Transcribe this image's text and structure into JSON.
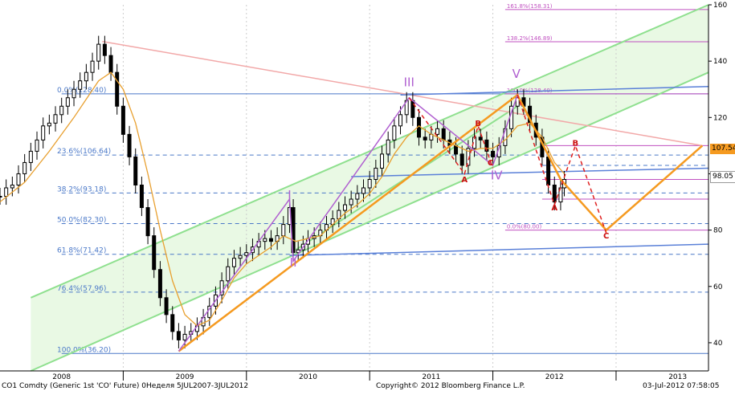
{
  "chart_data": {
    "type": "candlestick",
    "ylim": [
      30,
      160
    ],
    "y_ticks": [
      40,
      60,
      80,
      100,
      120,
      140,
      160
    ],
    "x_labels": [
      "2008",
      "2009",
      "2010",
      "2011",
      "2012",
      "2013"
    ],
    "price_labels": {
      "orange": "107.54",
      "white": "98.05"
    },
    "fib_levels": [
      {
        "label": "0.0%(128.40)",
        "value": 128.4
      },
      {
        "label": "23.6%(106.64)",
        "value": 106.64
      },
      {
        "label": "38.2%(93.18)",
        "value": 93.18
      },
      {
        "label": "50.0%(82.30)",
        "value": 82.3
      },
      {
        "label": "61.8%(71.42)",
        "value": 71.42
      },
      {
        "label": "76.4%(57.96)",
        "value": 57.96
      },
      {
        "label": "100.0%(36.20)",
        "value": 36.2
      }
    ],
    "fib_ext_levels": [
      {
        "label": "161.8%(158.31)",
        "value": 158.31
      },
      {
        "label": "138.2%(146.89)",
        "value": 146.89
      },
      {
        "label": "100.0%(128.40)",
        "value": 128.4
      },
      {
        "label": "0.0%(80.00)",
        "value": 80.0
      }
    ],
    "wave_labels": [
      {
        "text": "I",
        "t": 2009.85,
        "v": 91
      },
      {
        "text": "II",
        "t": 2009.88,
        "v": 67
      },
      {
        "text": "III",
        "t": 2010.82,
        "v": 131
      },
      {
        "text": "IV",
        "t": 2011.53,
        "v": 98
      },
      {
        "text": "V",
        "t": 2011.69,
        "v": 134
      }
    ],
    "abc_labels": [
      {
        "text": "A",
        "t": 2011.27,
        "v": 97
      },
      {
        "text": "B",
        "t": 2011.38,
        "v": 117
      },
      {
        "text": "C",
        "t": 2011.48,
        "v": 103
      },
      {
        "text": "A",
        "t": 2012.0,
        "v": 87
      },
      {
        "text": "B",
        "t": 2012.17,
        "v": 110
      },
      {
        "text": "C",
        "t": 2012.42,
        "v": 77
      }
    ],
    "candles": [
      [
        2007.5,
        92
      ],
      [
        2007.55,
        95
      ],
      [
        2007.6,
        96
      ],
      [
        2007.65,
        100
      ],
      [
        2007.7,
        104
      ],
      [
        2007.75,
        108
      ],
      [
        2007.8,
        112
      ],
      [
        2007.85,
        117
      ],
      [
        2007.9,
        118
      ],
      [
        2007.95,
        121
      ],
      [
        2008.0,
        124
      ],
      [
        2008.05,
        127
      ],
      [
        2008.1,
        130
      ],
      [
        2008.15,
        133
      ],
      [
        2008.2,
        136
      ],
      [
        2008.25,
        140
      ],
      [
        2008.3,
        146
      ],
      [
        2008.35,
        142
      ],
      [
        2008.4,
        136
      ],
      [
        2008.45,
        124
      ],
      [
        2008.5,
        114
      ],
      [
        2008.55,
        106
      ],
      [
        2008.6,
        96
      ],
      [
        2008.65,
        88
      ],
      [
        2008.7,
        78
      ],
      [
        2008.75,
        66
      ],
      [
        2008.8,
        56
      ],
      [
        2008.85,
        50
      ],
      [
        2008.9,
        44
      ],
      [
        2008.95,
        41
      ],
      [
        2009.0,
        43
      ],
      [
        2009.05,
        44
      ],
      [
        2009.1,
        46
      ],
      [
        2009.15,
        49
      ],
      [
        2009.2,
        53
      ],
      [
        2009.25,
        57
      ],
      [
        2009.3,
        62
      ],
      [
        2009.35,
        67
      ],
      [
        2009.4,
        70
      ],
      [
        2009.45,
        71
      ],
      [
        2009.5,
        72
      ],
      [
        2009.55,
        74
      ],
      [
        2009.6,
        76
      ],
      [
        2009.65,
        77
      ],
      [
        2009.7,
        76
      ],
      [
        2009.75,
        78
      ],
      [
        2009.8,
        82
      ],
      [
        2009.85,
        88
      ],
      [
        2009.88,
        72
      ],
      [
        2009.92,
        73
      ],
      [
        2009.96,
        75
      ],
      [
        2010.0,
        77
      ],
      [
        2010.05,
        78
      ],
      [
        2010.1,
        80
      ],
      [
        2010.15,
        82
      ],
      [
        2010.2,
        84
      ],
      [
        2010.25,
        87
      ],
      [
        2010.3,
        89
      ],
      [
        2010.35,
        91
      ],
      [
        2010.4,
        93
      ],
      [
        2010.45,
        95
      ],
      [
        2010.5,
        98
      ],
      [
        2010.55,
        102
      ],
      [
        2010.6,
        107
      ],
      [
        2010.65,
        112
      ],
      [
        2010.7,
        117
      ],
      [
        2010.75,
        121
      ],
      [
        2010.8,
        126
      ],
      [
        2010.85,
        120
      ],
      [
        2010.9,
        113
      ],
      [
        2010.95,
        112
      ],
      [
        2011.0,
        114
      ],
      [
        2011.05,
        116
      ],
      [
        2011.1,
        112
      ],
      [
        2011.15,
        110
      ],
      [
        2011.2,
        107
      ],
      [
        2011.25,
        103
      ],
      [
        2011.3,
        109
      ],
      [
        2011.35,
        113
      ],
      [
        2011.4,
        112
      ],
      [
        2011.45,
        108
      ],
      [
        2011.5,
        106
      ],
      [
        2011.55,
        110
      ],
      [
        2011.6,
        116
      ],
      [
        2011.65,
        124
      ],
      [
        2011.7,
        127
      ],
      [
        2011.75,
        124
      ],
      [
        2011.8,
        118
      ],
      [
        2011.85,
        113
      ],
      [
        2011.9,
        106
      ],
      [
        2011.95,
        96
      ],
      [
        2012.0,
        90
      ],
      [
        2012.05,
        95
      ],
      [
        2012.08,
        98
      ]
    ],
    "ma": [
      [
        2007.5,
        90
      ],
      [
        2007.7,
        97
      ],
      [
        2007.9,
        108
      ],
      [
        2008.1,
        120
      ],
      [
        2008.3,
        133
      ],
      [
        2008.4,
        136
      ],
      [
        2008.5,
        130
      ],
      [
        2008.6,
        118
      ],
      [
        2008.7,
        100
      ],
      [
        2008.8,
        80
      ],
      [
        2008.9,
        62
      ],
      [
        2009.0,
        50
      ],
      [
        2009.1,
        46
      ],
      [
        2009.2,
        48
      ],
      [
        2009.3,
        55
      ],
      [
        2009.4,
        63
      ],
      [
        2009.5,
        68
      ],
      [
        2009.6,
        71
      ],
      [
        2009.7,
        74
      ],
      [
        2009.8,
        78
      ],
      [
        2009.9,
        76
      ],
      [
        2010.0,
        77
      ],
      [
        2010.1,
        78
      ],
      [
        2010.2,
        82
      ],
      [
        2010.3,
        86
      ],
      [
        2010.4,
        89
      ],
      [
        2010.5,
        93
      ],
      [
        2010.6,
        99
      ],
      [
        2010.7,
        107
      ],
      [
        2010.8,
        113
      ],
      [
        2010.9,
        117
      ],
      [
        2011.0,
        114
      ],
      [
        2011.1,
        112
      ],
      [
        2011.2,
        110
      ],
      [
        2011.3,
        108
      ],
      [
        2011.4,
        109
      ],
      [
        2011.5,
        109
      ],
      [
        2011.6,
        112
      ],
      [
        2011.7,
        117
      ],
      [
        2011.8,
        118
      ],
      [
        2011.9,
        113
      ],
      [
        2012.0,
        104
      ],
      [
        2012.08,
        100
      ]
    ]
  },
  "footer": {
    "left": "CO1 Comdty (Generic 1st 'CO' Future) 0Неделя 5JUL2007-3JUL2012",
    "center": "Copyright© 2012 Bloomberg Finance L.P.",
    "right": "03-Jul-2012 07:58:05"
  },
  "colors": {
    "candle": "#000000",
    "ma": "#e8a030",
    "channel": "#8fe08f",
    "channel_fill": "#e9f9e4",
    "fib_line": "#4a78c8",
    "fib_dash": "#4a78c8",
    "fib_ext": "#c050c0",
    "wave": "#b060d0",
    "orange": "#f59a20",
    "red": "#e02020",
    "pink": "#f2a8a8",
    "blue_line": "#5a80d8"
  }
}
